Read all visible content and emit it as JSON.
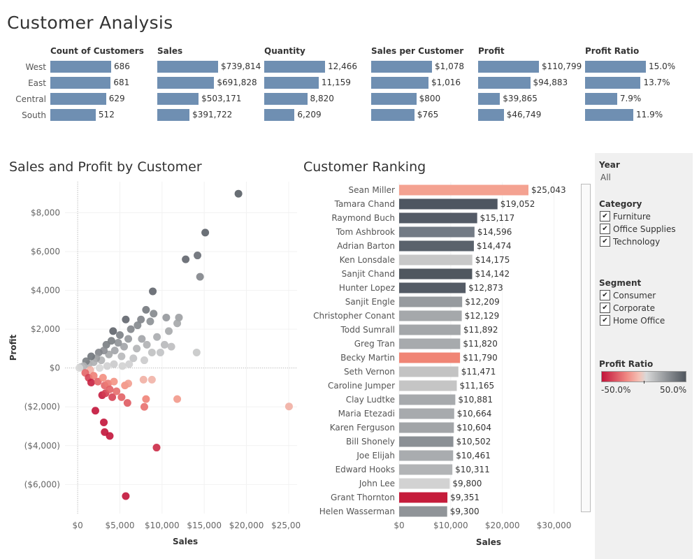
{
  "page_title": "Customer Analysis",
  "kpi": {
    "regions": [
      "West",
      "East",
      "Central",
      "South"
    ],
    "columns": [
      {
        "title": "Count of Customers",
        "values": [
          686,
          681,
          629,
          512
        ],
        "labels": [
          "686",
          "681",
          "629",
          "512"
        ]
      },
      {
        "title": "Sales",
        "values": [
          739814,
          691828,
          503171,
          391722
        ],
        "labels": [
          "$739,814",
          "$691,828",
          "$503,171",
          "$391,722"
        ]
      },
      {
        "title": "Quantity",
        "values": [
          12466,
          11159,
          8820,
          6209
        ],
        "labels": [
          "12,466",
          "11,159",
          "8,820",
          "6,209"
        ]
      },
      {
        "title": "Sales per Customer",
        "values": [
          1078,
          1016,
          800,
          765
        ],
        "labels": [
          "$1,078",
          "$1,016",
          "$800",
          "$765"
        ]
      },
      {
        "title": "Profit",
        "values": [
          110799,
          94883,
          39865,
          46749
        ],
        "labels": [
          "$110,799",
          "$94,883",
          "$39,865",
          "$46,749"
        ]
      },
      {
        "title": "Profit Ratio",
        "values": [
          15.0,
          13.7,
          7.9,
          11.9
        ],
        "labels": [
          "15.0%",
          "13.7%",
          "7.9%",
          "11.9%"
        ]
      }
    ],
    "bar_color": "#6f8fb2"
  },
  "scatter_title": "Sales and Profit by Customer",
  "ranking_title": "Customer Ranking",
  "filters": {
    "year": {
      "title": "Year",
      "value": "All"
    },
    "category": {
      "title": "Category",
      "options": [
        "Furniture",
        "Office Supplies",
        "Technology"
      ],
      "checked": [
        true,
        true,
        true
      ]
    },
    "segment": {
      "title": "Segment",
      "options": [
        "Consumer",
        "Corporate",
        "Home Office"
      ],
      "checked": [
        true,
        true,
        true
      ]
    },
    "profit_ratio_legend": {
      "title": "Profit Ratio",
      "min_label": "-50.0%",
      "max_label": "50.0%"
    },
    "check_glyph": "✔"
  },
  "chart_data": [
    {
      "type": "scatter",
      "title": "Sales and Profit by Customer",
      "xlabel": "Sales",
      "ylabel": "Profit",
      "xlim": [
        -1500,
        26000
      ],
      "ylim": [
        -7500,
        9600
      ],
      "xticks": [
        0,
        5000,
        10000,
        15000,
        20000,
        25000
      ],
      "xtick_labels": [
        "$0",
        "$5,000",
        "$10,000",
        "$15,000",
        "$20,000",
        "$25,000"
      ],
      "yticks": [
        -6000,
        -4000,
        -2000,
        0,
        2000,
        4000,
        6000,
        8000
      ],
      "ytick_labels": [
        "($6,000)",
        "($4,000)",
        "($2,000)",
        "$0",
        "$2,000",
        "$4,000",
        "$6,000",
        "$8,000"
      ],
      "color_encoding": "Profit Ratio",
      "points": [
        {
          "x": 19052,
          "y": 8981,
          "ratio": 0.47
        },
        {
          "x": 15117,
          "y": 6976,
          "ratio": 0.46
        },
        {
          "x": 12800,
          "y": 5600,
          "ratio": 0.44
        },
        {
          "x": 14200,
          "y": 5800,
          "ratio": 0.41
        },
        {
          "x": 14500,
          "y": 4700,
          "ratio": 0.32
        },
        {
          "x": 8900,
          "y": 3950,
          "ratio": 0.44
        },
        {
          "x": 8100,
          "y": 3000,
          "ratio": 0.37
        },
        {
          "x": 9000,
          "y": 2800,
          "ratio": 0.31
        },
        {
          "x": 8600,
          "y": 2400,
          "ratio": 0.28
        },
        {
          "x": 7500,
          "y": 2500,
          "ratio": 0.33
        },
        {
          "x": 7100,
          "y": 2200,
          "ratio": 0.31
        },
        {
          "x": 6300,
          "y": 2000,
          "ratio": 0.32
        },
        {
          "x": 5700,
          "y": 2500,
          "ratio": 0.44
        },
        {
          "x": 4200,
          "y": 1900,
          "ratio": 0.45
        },
        {
          "x": 5000,
          "y": 1700,
          "ratio": 0.34
        },
        {
          "x": 6000,
          "y": 1500,
          "ratio": 0.25
        },
        {
          "x": 12000,
          "y": 2600,
          "ratio": 0.22
        },
        {
          "x": 11800,
          "y": 2300,
          "ratio": 0.19
        },
        {
          "x": 10500,
          "y": 2600,
          "ratio": 0.25
        },
        {
          "x": 10800,
          "y": 1900,
          "ratio": 0.18
        },
        {
          "x": 10300,
          "y": 1200,
          "ratio": 0.12
        },
        {
          "x": 11100,
          "y": 1100,
          "ratio": 0.1
        },
        {
          "x": 14100,
          "y": 800,
          "ratio": 0.06
        },
        {
          "x": 9800,
          "y": 800,
          "ratio": 0.08
        },
        {
          "x": 9400,
          "y": 1600,
          "ratio": 0.17
        },
        {
          "x": 8200,
          "y": 1200,
          "ratio": 0.15
        },
        {
          "x": 8800,
          "y": 800,
          "ratio": 0.09
        },
        {
          "x": 7600,
          "y": 1500,
          "ratio": 0.2
        },
        {
          "x": 7000,
          "y": 1000,
          "ratio": 0.14
        },
        {
          "x": 6600,
          "y": 500,
          "ratio": 0.08
        },
        {
          "x": 7900,
          "y": 400,
          "ratio": 0.05
        },
        {
          "x": 5500,
          "y": 1100,
          "ratio": 0.2
        },
        {
          "x": 5200,
          "y": 600,
          "ratio": 0.12
        },
        {
          "x": 4800,
          "y": 1300,
          "ratio": 0.27
        },
        {
          "x": 4400,
          "y": 900,
          "ratio": 0.2
        },
        {
          "x": 4000,
          "y": 1400,
          "ratio": 0.35
        },
        {
          "x": 3700,
          "y": 700,
          "ratio": 0.19
        },
        {
          "x": 3400,
          "y": 1200,
          "ratio": 0.35
        },
        {
          "x": 3100,
          "y": 900,
          "ratio": 0.29
        },
        {
          "x": 2800,
          "y": 400,
          "ratio": 0.14
        },
        {
          "x": 2500,
          "y": 800,
          "ratio": 0.32
        },
        {
          "x": 2200,
          "y": 500,
          "ratio": 0.23
        },
        {
          "x": 1900,
          "y": 300,
          "ratio": 0.16
        },
        {
          "x": 1600,
          "y": 600,
          "ratio": 0.38
        },
        {
          "x": 1300,
          "y": 200,
          "ratio": 0.15
        },
        {
          "x": 1000,
          "y": 350,
          "ratio": 0.35
        },
        {
          "x": 700,
          "y": 100,
          "ratio": 0.14
        },
        {
          "x": 400,
          "y": 50,
          "ratio": 0.12
        },
        {
          "x": 200,
          "y": 0,
          "ratio": 0.0
        },
        {
          "x": 6100,
          "y": 200,
          "ratio": 0.03
        },
        {
          "x": 5300,
          "y": 100,
          "ratio": 0.02
        },
        {
          "x": 4300,
          "y": 200,
          "ratio": 0.05
        },
        {
          "x": 3500,
          "y": 100,
          "ratio": 0.03
        },
        {
          "x": 2600,
          "y": 0,
          "ratio": 0.0
        },
        {
          "x": 1500,
          "y": -100,
          "ratio": -0.07
        },
        {
          "x": 900,
          "y": -250,
          "ratio": -0.28
        },
        {
          "x": 1300,
          "y": -500,
          "ratio": -0.38
        },
        {
          "x": 1900,
          "y": -400,
          "ratio": -0.21
        },
        {
          "x": 1600,
          "y": -750,
          "ratio": -0.47
        },
        {
          "x": 2400,
          "y": -700,
          "ratio": -0.29
        },
        {
          "x": 3000,
          "y": -500,
          "ratio": -0.17
        },
        {
          "x": 3200,
          "y": -900,
          "ratio": -0.28
        },
        {
          "x": 3600,
          "y": -800,
          "ratio": -0.22
        },
        {
          "x": 4300,
          "y": -700,
          "ratio": -0.16
        },
        {
          "x": 5600,
          "y": -900,
          "ratio": -0.16
        },
        {
          "x": 6000,
          "y": -800,
          "ratio": -0.13
        },
        {
          "x": 7800,
          "y": -600,
          "ratio": -0.08
        },
        {
          "x": 8800,
          "y": -600,
          "ratio": -0.07
        },
        {
          "x": 2900,
          "y": -1400,
          "ratio": -0.48
        },
        {
          "x": 3300,
          "y": -1300,
          "ratio": -0.39
        },
        {
          "x": 3800,
          "y": -1100,
          "ratio": -0.29
        },
        {
          "x": 4100,
          "y": -1500,
          "ratio": -0.37
        },
        {
          "x": 4600,
          "y": -1200,
          "ratio": -0.26
        },
        {
          "x": 5200,
          "y": -1500,
          "ratio": -0.29
        },
        {
          "x": 5900,
          "y": -1800,
          "ratio": -0.31
        },
        {
          "x": 8100,
          "y": -1600,
          "ratio": -0.2
        },
        {
          "x": 7900,
          "y": -2000,
          "ratio": -0.25
        },
        {
          "x": 11800,
          "y": -1600,
          "ratio": -0.14
        },
        {
          "x": 25043,
          "y": -1981,
          "ratio": -0.08
        },
        {
          "x": 2100,
          "y": -2200,
          "ratio": -1.0
        },
        {
          "x": 3100,
          "y": -2800,
          "ratio": -0.9
        },
        {
          "x": 3200,
          "y": -3300,
          "ratio": -1.0
        },
        {
          "x": 3800,
          "y": -3500,
          "ratio": -0.92
        },
        {
          "x": 9351,
          "y": -4100,
          "ratio": -0.44
        },
        {
          "x": 5700,
          "y": -6600,
          "ratio": -1.16
        }
      ]
    },
    {
      "type": "bar",
      "orientation": "horizontal",
      "title": "Customer Ranking",
      "xlabel": "Sales",
      "xlim": [
        0,
        32000
      ],
      "xticks": [
        0,
        10000,
        20000,
        30000
      ],
      "xtick_labels": [
        "$0",
        "$10,000",
        "$20,000",
        "$30,000"
      ],
      "categories": [
        "Sean Miller",
        "Tamara Chand",
        "Raymond Buch",
        "Tom Ashbrook",
        "Adrian Barton",
        "Ken Lonsdale",
        "Sanjit Chand",
        "Hunter Lopez",
        "Sanjit Engle",
        "Christopher Conant",
        "Todd Sumrall",
        "Greg Tran",
        "Becky Martin",
        "Seth Vernon",
        "Caroline Jumper",
        "Clay Ludtke",
        "Maria Etezadi",
        "Karen Ferguson",
        "Bill Shonely",
        "Joe Elijah",
        "Edward Hooks",
        "John Lee",
        "Grant Thornton",
        "Helen Wasserman"
      ],
      "values": [
        25043,
        19052,
        15117,
        14596,
        14474,
        14175,
        14142,
        12873,
        12209,
        12129,
        11892,
        11820,
        11790,
        11471,
        11165,
        10881,
        10664,
        10604,
        10502,
        10461,
        10311,
        9800,
        9351,
        9300
      ],
      "value_labels": [
        "$25,043",
        "$19,052",
        "$15,117",
        "$14,596",
        "$14,474",
        "$14,175",
        "$14,142",
        "$12,873",
        "$12,209",
        "$12,129",
        "$11,892",
        "$11,820",
        "$11,790",
        "$11,471",
        "$11,165",
        "$10,881",
        "$10,664",
        "$10,604",
        "$10,502",
        "$10,461",
        "$10,311",
        "$9,800",
        "$9,351",
        "$9,300"
      ],
      "bar_colors": [
        "#f4a291",
        "#4e5661",
        "#545b66",
        "#737b85",
        "#5a626c",
        "#c8c8c8",
        "#50575f",
        "#545b65",
        "#979b9f",
        "#a5a8ab",
        "#a4a7aa",
        "#a7aaad",
        "#f08575",
        "#c3c3c3",
        "#c5c5c5",
        "#a7aaad",
        "#a7aaad",
        "#a2a5a8",
        "#8b9095",
        "#a9acaf",
        "#b2b4b6",
        "#d2d2d2",
        "#c51c3b",
        "#909498"
      ]
    }
  ]
}
